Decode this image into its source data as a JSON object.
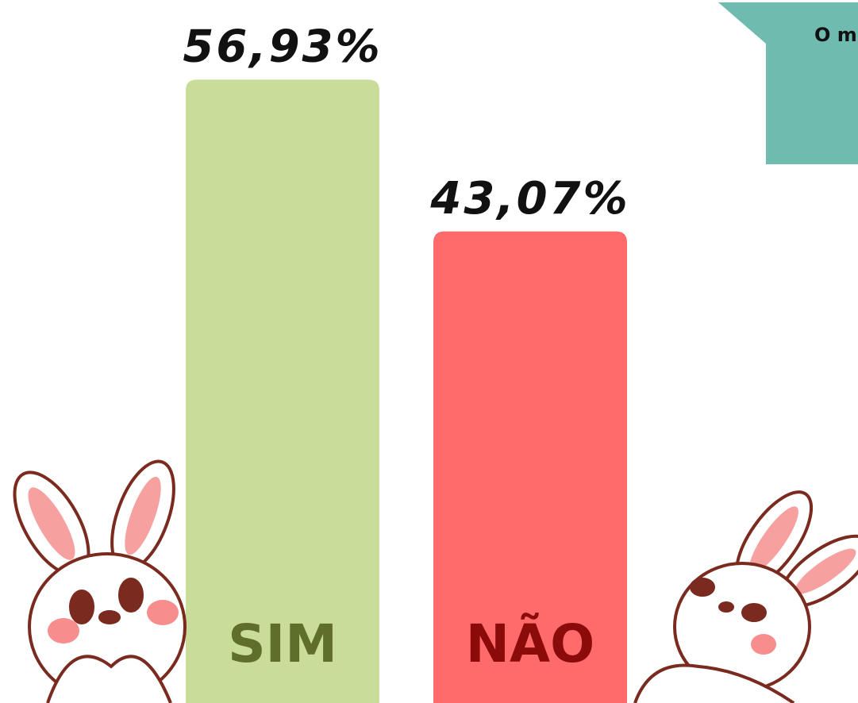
{
  "chart_data": {
    "type": "bar",
    "categories": [
      "SIM",
      "NÃO"
    ],
    "values": [
      56.93,
      43.07
    ],
    "value_labels": [
      "56,93%",
      "43,07%"
    ],
    "colors": [
      "#c9dc9a",
      "#ff6b6b"
    ],
    "label_colors": [
      "#5f6e2a",
      "#8b0a0a"
    ],
    "annotation": "O m"
  }
}
